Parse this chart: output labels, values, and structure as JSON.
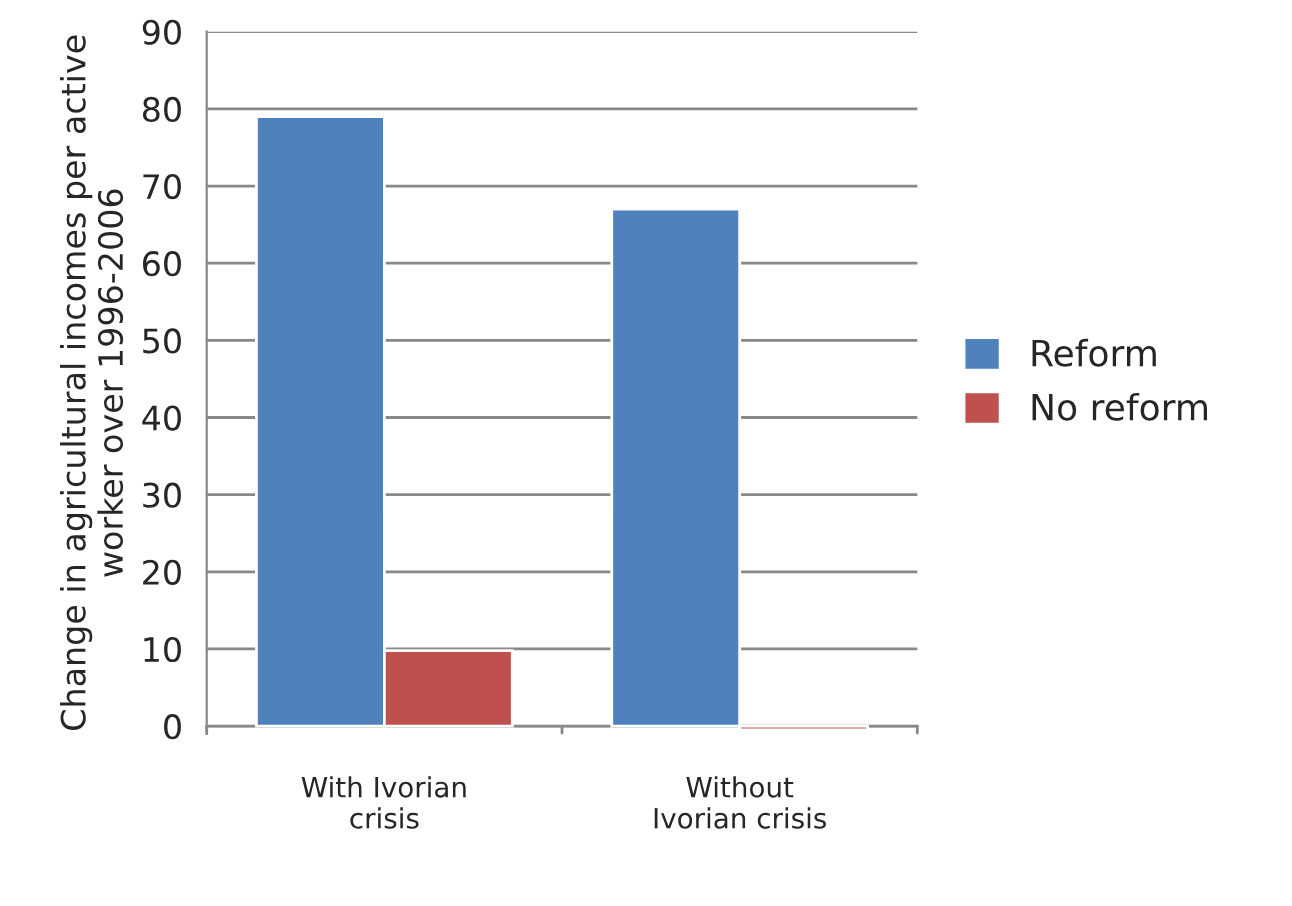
{
  "chart_data": {
    "type": "bar",
    "ylabel": "Change in agricultural incomes per active worker over 1996-2006",
    "categories": [
      "With Ivorian\ncrisis",
      "Without\nIvorian crisis"
    ],
    "series": [
      {
        "name": "Reform",
        "color": "#4f81bd",
        "values": [
          79,
          67
        ]
      },
      {
        "name": "No reform",
        "color": "#c0504d",
        "values": [
          9.8,
          -0.5
        ]
      }
    ],
    "ylim": [
      -1,
      90
    ],
    "yticks": [
      0,
      10,
      20,
      30,
      40,
      50,
      60,
      70,
      80,
      90
    ],
    "grid": "y",
    "legend": "right"
  }
}
